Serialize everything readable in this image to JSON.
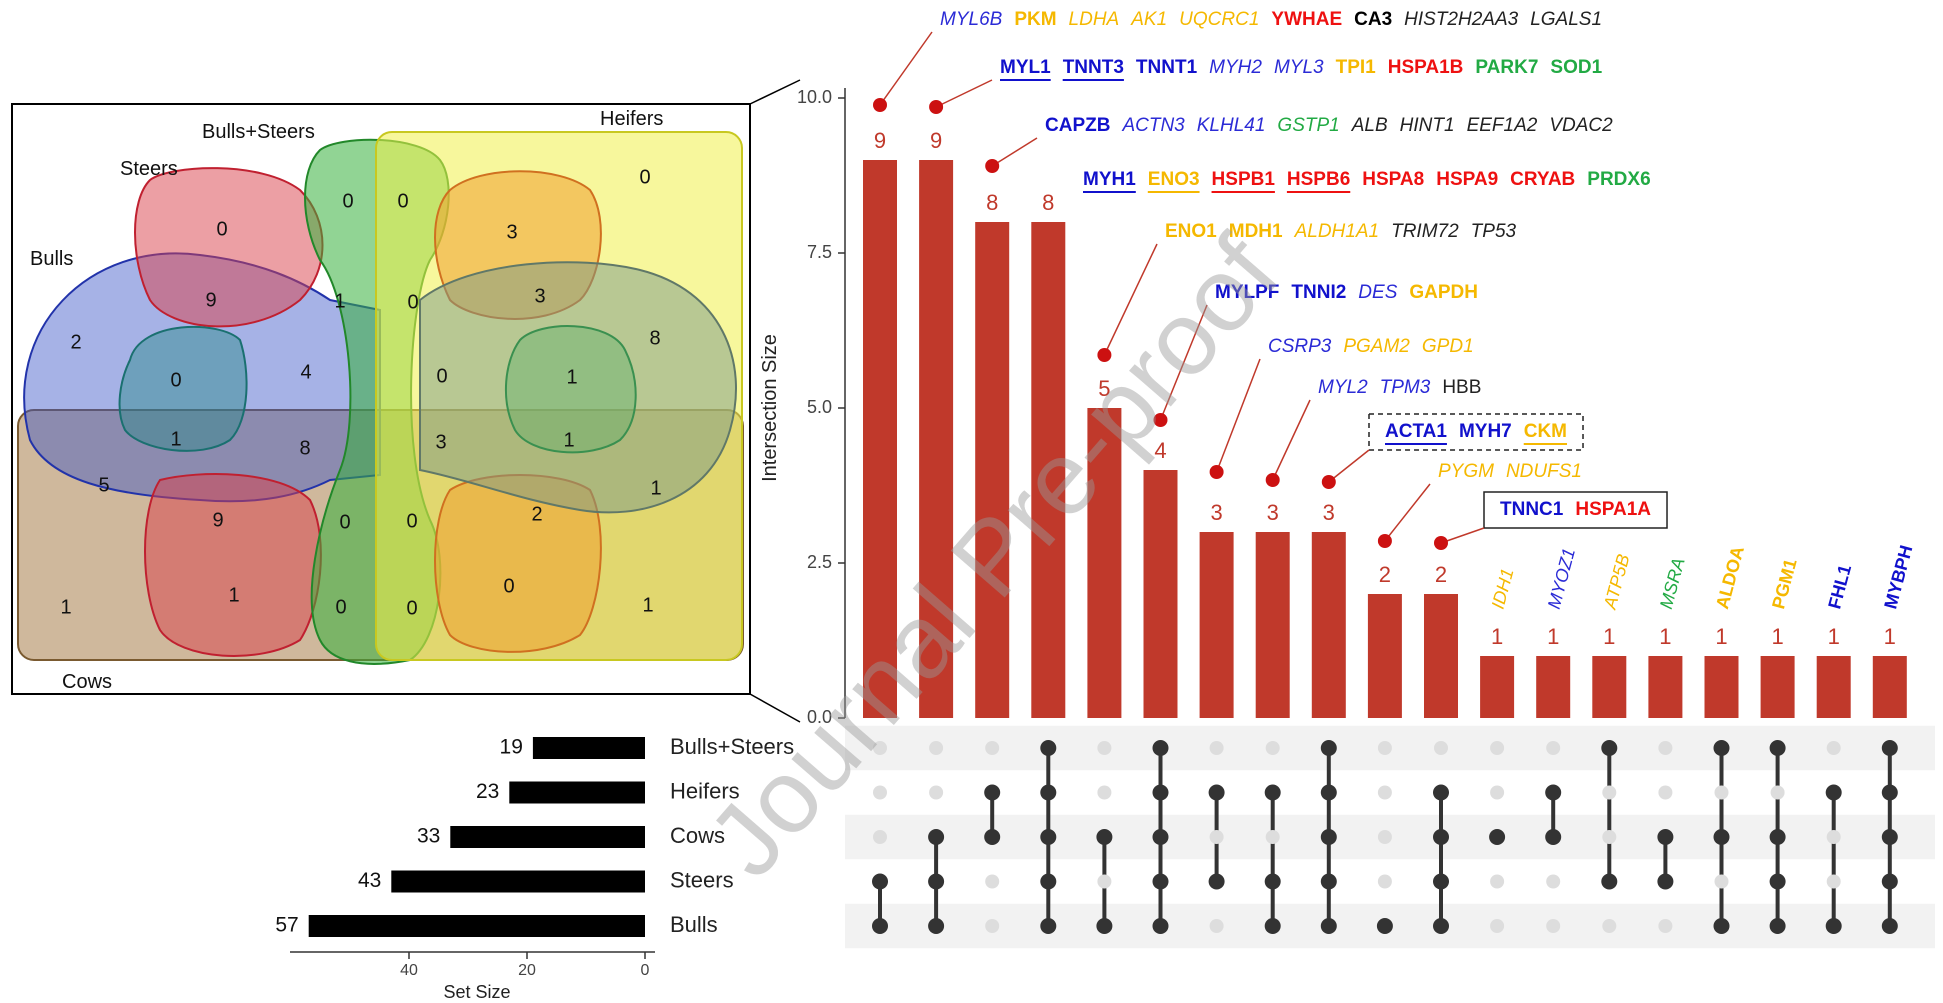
{
  "watermark": "Journal Pre-proof",
  "chart_data": [
    {
      "type": "venn",
      "sets": [
        "Bulls",
        "Steers",
        "Bulls+Steers",
        "Heifers",
        "Cows"
      ],
      "set_colors": [
        "#3a55c8",
        "#d9404a",
        "#36b03c",
        "#e8e840",
        "#a87d4a"
      ],
      "region_values": [
        {
          "v": "0"
        },
        {
          "v": "0"
        },
        {
          "v": "0"
        },
        {
          "v": "0"
        },
        {
          "v": "9"
        },
        {
          "v": "3"
        },
        {
          "v": "1"
        },
        {
          "v": "0"
        },
        {
          "v": "3"
        },
        {
          "v": "2"
        },
        {
          "v": "4"
        },
        {
          "v": "8"
        },
        {
          "v": "0"
        },
        {
          "v": "0"
        },
        {
          "v": "1"
        },
        {
          "v": "1"
        },
        {
          "v": "8"
        },
        {
          "v": "3"
        },
        {
          "v": "1"
        },
        {
          "v": "5"
        },
        {
          "v": "1"
        },
        {
          "v": "9"
        },
        {
          "v": "0"
        },
        {
          "v": "0"
        },
        {
          "v": "2"
        },
        {
          "v": "1"
        },
        {
          "v": "0"
        },
        {
          "v": "1"
        },
        {
          "v": "1"
        },
        {
          "v": "0"
        },
        {
          "v": "0"
        }
      ]
    },
    {
      "type": "upset",
      "ylabel": "Intersection Size",
      "ylim": [
        0,
        10
      ],
      "yticks": [
        "0.0",
        "2.5",
        "5.0",
        "7.5",
        "10.0"
      ],
      "bar_color": "#c0392b",
      "bars": [
        {
          "value": 9,
          "label": "9",
          "members": [
            "Steers",
            "Bulls"
          ]
        },
        {
          "value": 9,
          "label": "9",
          "members": [
            "Cows",
            "Steers",
            "Bulls"
          ]
        },
        {
          "value": 8,
          "label": "8",
          "members": [
            "Heifers",
            "Cows"
          ]
        },
        {
          "value": 8,
          "label": "8",
          "members": [
            "Bulls+Steers",
            "Heifers",
            "Cows",
            "Steers",
            "Bulls"
          ]
        },
        {
          "value": 5,
          "label": "5",
          "members": [
            "Cows",
            "Bulls"
          ]
        },
        {
          "value": 4,
          "label": "4",
          "members": [
            "Bulls+Steers",
            "Heifers",
            "Cows",
            "Steers",
            "Bulls"
          ]
        },
        {
          "value": 3,
          "label": "3",
          "members": [
            "Heifers",
            "Steers"
          ]
        },
        {
          "value": 3,
          "label": "3",
          "members": [
            "Heifers",
            "Steers",
            "Bulls"
          ]
        },
        {
          "value": 3,
          "label": "3",
          "members": [
            "Bulls+Steers",
            "Heifers",
            "Cows",
            "Steers",
            "Bulls"
          ]
        },
        {
          "value": 2,
          "label": "2",
          "members": [
            "Bulls"
          ]
        },
        {
          "value": 2,
          "label": "2",
          "members": [
            "Heifers",
            "Cows",
            "Steers",
            "Bulls"
          ]
        },
        {
          "value": 1,
          "label": "1",
          "members": [
            "Cows"
          ]
        },
        {
          "value": 1,
          "label": "1",
          "members": [
            "Heifers",
            "Cows"
          ]
        },
        {
          "value": 1,
          "label": "1",
          "members": [
            "Bulls+Steers",
            "Steers"
          ]
        },
        {
          "value": 1,
          "label": "1",
          "members": [
            "Cows",
            "Steers"
          ]
        },
        {
          "value": 1,
          "label": "1",
          "members": [
            "Bulls+Steers",
            "Cows",
            "Bulls"
          ]
        },
        {
          "value": 1,
          "label": "1",
          "members": [
            "Bulls+Steers",
            "Cows",
            "Steers",
            "Bulls"
          ]
        },
        {
          "value": 1,
          "label": "1",
          "members": [
            "Heifers",
            "Bulls"
          ]
        },
        {
          "value": 1,
          "label": "1",
          "members": [
            "Bulls+Steers",
            "Heifers",
            "Cows",
            "Steers",
            "Bulls"
          ]
        }
      ],
      "set_rows": [
        {
          "name": "Bulls+Steers",
          "size": 19,
          "label": "19"
        },
        {
          "name": "Heifers",
          "size": 23,
          "label": "23"
        },
        {
          "name": "Cows",
          "size": 33,
          "label": "33"
        },
        {
          "name": "Steers",
          "size": 43,
          "label": "43"
        },
        {
          "name": "Bulls",
          "size": 57,
          "label": "57"
        }
      ],
      "set_size_axis": {
        "label": "Set Size",
        "ticks": [
          "40",
          "20",
          "0"
        ],
        "xlim": [
          0,
          60
        ]
      },
      "gene_rows": [
        {
          "genes": [
            {
              "t": "MYL6B",
              "c": "#2b2bd6",
              "i": true
            },
            {
              "t": "PKM",
              "c": "#f5b800",
              "b": true
            },
            {
              "t": "LDHA",
              "c": "#f5b800",
              "i": true
            },
            {
              "t": "AK1",
              "c": "#f5b800",
              "i": true
            },
            {
              "t": "UQCRC1",
              "c": "#f5b800",
              "i": true
            },
            {
              "t": "YWHAE",
              "c": "#ee1111",
              "b": true
            },
            {
              "t": "CA3",
              "c": "#000000",
              "b": true
            },
            {
              "t": "HIST2H2AA3",
              "c": "#222222",
              "i": true
            },
            {
              "t": "LGALS1",
              "c": "#222222",
              "i": true
            }
          ]
        },
        {
          "genes": [
            {
              "t": "MYL1",
              "c": "#1111cc",
              "b": true,
              "u": true
            },
            {
              "t": "TNNT3",
              "c": "#1111cc",
              "b": true,
              "u": true
            },
            {
              "t": "TNNT1",
              "c": "#1111cc",
              "b": true
            },
            {
              "t": "MYH2",
              "c": "#2b2bd6",
              "i": true
            },
            {
              "t": "MYL3",
              "c": "#2b2bd6",
              "i": true
            },
            {
              "t": "TPI1",
              "c": "#f5b800",
              "b": true
            },
            {
              "t": "HSPA1B",
              "c": "#ee1111",
              "b": true
            },
            {
              "t": "PARK7",
              "c": "#22aa44",
              "b": true
            },
            {
              "t": "SOD1",
              "c": "#22aa44",
              "b": true
            }
          ]
        },
        {
          "genes": [
            {
              "t": "CAPZB",
              "c": "#1111cc",
              "b": true
            },
            {
              "t": "ACTN3",
              "c": "#2b2bd6",
              "i": true
            },
            {
              "t": "KLHL41",
              "c": "#2b2bd6",
              "i": true
            },
            {
              "t": "GSTP1",
              "c": "#22aa44",
              "i": true
            },
            {
              "t": "ALB",
              "c": "#222222",
              "i": true
            },
            {
              "t": "HINT1",
              "c": "#222222",
              "i": true
            },
            {
              "t": "EEF1A2",
              "c": "#222222",
              "i": true
            },
            {
              "t": "VDAC2",
              "c": "#222222",
              "i": true
            }
          ]
        },
        {
          "genes": [
            {
              "t": "MYH1",
              "c": "#1111cc",
              "b": true,
              "u": true
            },
            {
              "t": "ENO3",
              "c": "#f5b800",
              "b": true,
              "u": true
            },
            {
              "t": "HSPB1",
              "c": "#ee1111",
              "b": true,
              "u": true
            },
            {
              "t": "HSPB6",
              "c": "#ee1111",
              "b": true,
              "u": true
            },
            {
              "t": "HSPA8",
              "c": "#ee1111",
              "b": true
            },
            {
              "t": "HSPA9",
              "c": "#ee1111",
              "b": true
            },
            {
              "t": "CRYAB",
              "c": "#ee1111",
              "b": true
            },
            {
              "t": "PRDX6",
              "c": "#22aa44",
              "b": true
            }
          ]
        },
        {
          "genes": [
            {
              "t": "ENO1",
              "c": "#f5b800",
              "b": true
            },
            {
              "t": "MDH1",
              "c": "#f5b800",
              "b": true
            },
            {
              "t": "ALDH1A1",
              "c": "#f5b800",
              "i": true
            },
            {
              "t": "TRIM72",
              "c": "#222222",
              "i": true
            },
            {
              "t": "TP53",
              "c": "#222222",
              "i": true
            }
          ]
        },
        {
          "genes": [
            {
              "t": "MYLPF",
              "c": "#1111cc",
              "b": true
            },
            {
              "t": "TNNI2",
              "c": "#1111cc",
              "b": true
            },
            {
              "t": "DES",
              "c": "#2b2bd6",
              "i": true
            },
            {
              "t": "GAPDH",
              "c": "#f5b800",
              "b": true
            }
          ]
        },
        {
          "genes": [
            {
              "t": "CSRP3",
              "c": "#2b2bd6",
              "i": true
            },
            {
              "t": "PGAM2",
              "c": "#f5b800",
              "i": true
            },
            {
              "t": "GPD1",
              "c": "#f5b800",
              "i": true
            }
          ]
        },
        {
          "genes": [
            {
              "t": "MYL2",
              "c": "#2b2bd6",
              "i": true
            },
            {
              "t": "TPM3",
              "c": "#2b2bd6",
              "i": true
            },
            {
              "t": "HBB",
              "c": "#222222"
            }
          ]
        },
        {
          "genes": [
            {
              "t": "ACTA1",
              "c": "#1111cc",
              "b": true,
              "u": true
            },
            {
              "t": "MYH7",
              "c": "#1111cc",
              "b": true
            },
            {
              "t": "CKM",
              "c": "#f5b800",
              "b": true,
              "u": true
            }
          ]
        },
        {
          "genes": [
            {
              "t": "PYGM",
              "c": "#f5b800",
              "i": true
            },
            {
              "t": "NDUFS1",
              "c": "#f5b800",
              "i": true
            }
          ]
        },
        {
          "genes": [
            {
              "t": "TNNC1",
              "c": "#1111cc",
              "b": true
            },
            {
              "t": "HSPA1A",
              "c": "#ee1111",
              "b": true
            }
          ]
        }
      ],
      "rotated_genes": [
        {
          "t": "IDH1",
          "c": "#f5b800",
          "i": true
        },
        {
          "t": "MYOZ1",
          "c": "#2b2bd6",
          "i": true
        },
        {
          "t": "ATP5B",
          "c": "#f5b800",
          "i": true
        },
        {
          "t": "MSRA",
          "c": "#22aa44",
          "i": true
        },
        {
          "t": "ALDOA",
          "c": "#f5b800",
          "b": true
        },
        {
          "t": "PGM1",
          "c": "#f5b800",
          "b": true
        },
        {
          "t": "FHL1",
          "c": "#1111cc",
          "b": true
        },
        {
          "t": "MYBPH",
          "c": "#1111cc",
          "b": true
        }
      ]
    }
  ]
}
